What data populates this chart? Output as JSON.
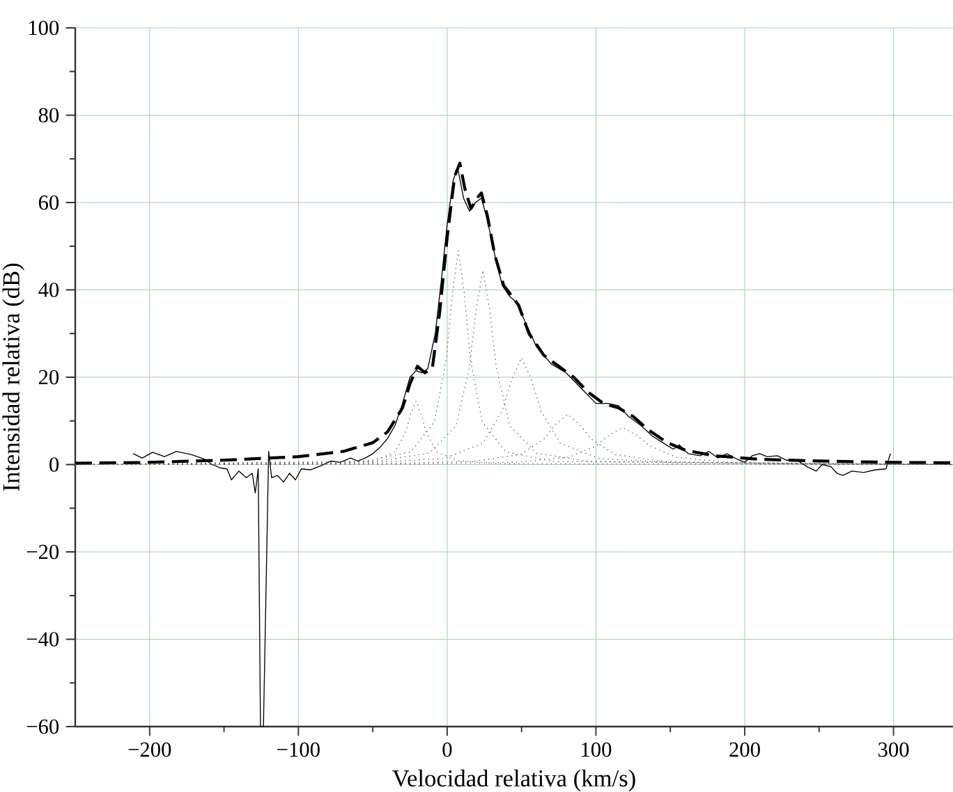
{
  "chart_data": {
    "type": "line",
    "xlabel": "Velocidad relativa (km/s)",
    "ylabel": "Intensidad relativa (dB)",
    "xlim": [
      -250,
      340
    ],
    "ylim": [
      -60,
      100
    ],
    "xticks": [
      {
        "value": -200,
        "label": "−200"
      },
      {
        "value": -100,
        "label": "−100"
      },
      0,
      100,
      200,
      300
    ],
    "yticks": [
      {
        "value": -60,
        "label": "−60"
      },
      {
        "value": -40,
        "label": "−40"
      },
      {
        "value": -20,
        "label": "−20"
      },
      0,
      20,
      40,
      60,
      80,
      100
    ],
    "grid": true,
    "marker": "none",
    "series": [
      {
        "color": "#000000",
        "line_style": "solid",
        "x": [
          -211,
          -205,
          -198,
          -190,
          -182,
          -172,
          -163,
          -158,
          -152,
          -148,
          -145,
          -140,
          -135,
          -131,
          -129,
          -127,
          -125.5,
          -123.5,
          -120,
          -118,
          -114,
          -110,
          -106,
          -102,
          -98,
          -92,
          -85,
          -78,
          -72,
          -65,
          -60,
          -55,
          -50,
          -45,
          -40,
          -35,
          -30,
          -25,
          -21,
          -17,
          -13,
          -8,
          -4,
          0,
          4,
          7,
          11,
          15,
          19,
          23,
          27,
          32,
          37,
          42,
          47,
          52,
          60,
          70,
          80,
          90,
          100,
          108,
          115,
          122,
          130,
          138,
          145,
          152,
          156,
          162,
          170,
          176,
          182,
          188,
          195,
          200,
          205,
          210,
          215,
          222,
          228,
          235,
          242,
          248,
          252,
          258,
          262,
          266,
          272,
          280,
          288,
          295,
          297,
          298
        ],
        "values": [
          2.5,
          1.5,
          2.8,
          1.8,
          3,
          2.3,
          1.2,
          0,
          -0.8,
          -1,
          -3.5,
          -1.5,
          -3,
          -2,
          -6.5,
          -1,
          -60,
          -60,
          3,
          -3,
          -2.5,
          -4,
          -2,
          -3.5,
          -1,
          -1.2,
          -0.3,
          0.8,
          0.5,
          1.5,
          0.8,
          1.5,
          2.5,
          4,
          6,
          9,
          14,
          20,
          21.5,
          21,
          22,
          30,
          42,
          55,
          65,
          68,
          61,
          58,
          60,
          61,
          56,
          48,
          41,
          38.5,
          37,
          33,
          27,
          23,
          21,
          17.5,
          14,
          14,
          13.5,
          11,
          9,
          6.5,
          5,
          3.5,
          4.5,
          2.5,
          2,
          3,
          1.5,
          2.5,
          1.2,
          0.5,
          2,
          2.5,
          1.8,
          2,
          1,
          1,
          -0.5,
          -1.5,
          0,
          -0.5,
          -2,
          -2.5,
          -1.5,
          -1.8,
          -1.2,
          -1,
          1.5,
          2.5
        ]
      },
      {
        "color": "#000000",
        "line_style": "dashed",
        "x": [
          -250,
          -200,
          -150,
          -100,
          -70,
          -50,
          -40,
          -30,
          -25,
          -20,
          -15,
          -10,
          -5,
          0,
          5,
          8.5,
          12,
          16,
          20,
          23,
          27,
          32,
          38,
          43,
          48,
          55,
          65,
          75,
          85,
          95,
          105,
          115,
          125,
          135,
          148,
          160,
          180,
          210,
          250,
          300,
          340
        ],
        "values": [
          0.3,
          0.5,
          1,
          1.8,
          3,
          5,
          7.5,
          13,
          18.5,
          22.5,
          21,
          22,
          35,
          52,
          66,
          69,
          63,
          58.6,
          61,
          62.2,
          57,
          48,
          41,
          38.8,
          36.5,
          30,
          25,
          22.5,
          20,
          16.5,
          14,
          13,
          11,
          8,
          5,
          3.3,
          2,
          1.2,
          0.8,
          0.5,
          0.4
        ]
      },
      {
        "color": "#555555",
        "line_style": "dotted",
        "x": [
          -250,
          -77,
          -49,
          -35,
          -28,
          -24.5,
          -21,
          -17.5,
          -14,
          -7,
          7,
          35,
          340
        ],
        "values": [
          0,
          0.2,
          0.9,
          2.9,
          7.3,
          11.6,
          14.5,
          11.6,
          7.3,
          2.9,
          0.9,
          0.2,
          0
        ]
      },
      {
        "color": "#555555",
        "line_style": "dotted",
        "x": [
          -250,
          -56.5,
          -24.5,
          -8.5,
          -0.5,
          3.5,
          7.5,
          11.5,
          15.5,
          23.5,
          39.5,
          71.5,
          340
        ],
        "values": [
          0,
          0.7,
          2.9,
          9.8,
          24.5,
          39.2,
          49,
          39.2,
          24.5,
          9.8,
          2.9,
          0.7,
          0
        ]
      },
      {
        "color": "#555555",
        "line_style": "dotted",
        "x": [
          -250,
          -48,
          -12,
          6,
          15,
          19.5,
          24,
          28.5,
          33,
          42,
          60,
          96,
          340
        ],
        "values": [
          0,
          0.7,
          2.6,
          8.9,
          22.3,
          35.6,
          44.5,
          35.6,
          22.3,
          8.9,
          2.6,
          0.7,
          0
        ]
      },
      {
        "color": "#555555",
        "line_style": "dotted",
        "x": [
          -250,
          -54,
          -2,
          24,
          37,
          43.5,
          50,
          56.5,
          63,
          76,
          102,
          154,
          340
        ],
        "values": [
          0,
          0.4,
          1.4,
          4.9,
          12.3,
          19.6,
          24.5,
          19.6,
          12.3,
          4.9,
          1.4,
          0.4,
          0
        ]
      },
      {
        "color": "#555555",
        "line_style": "dotted",
        "x": [
          -250,
          -47,
          17,
          49,
          65,
          73,
          81,
          89,
          97,
          113,
          145,
          209,
          340
        ],
        "values": [
          0,
          0.2,
          0.7,
          2.3,
          5.8,
          9.2,
          11.5,
          9.2,
          5.8,
          2.3,
          0.7,
          0.2,
          0
        ]
      },
      {
        "color": "#555555",
        "line_style": "dotted",
        "x": [
          -250,
          -26,
          46,
          82,
          100,
          109,
          118,
          127,
          136,
          154,
          190,
          262,
          340
        ],
        "values": [
          0,
          0.1,
          0.5,
          1.7,
          4.3,
          6.8,
          8.5,
          6.8,
          4.3,
          1.7,
          0.5,
          0.1,
          0
        ]
      }
    ]
  }
}
